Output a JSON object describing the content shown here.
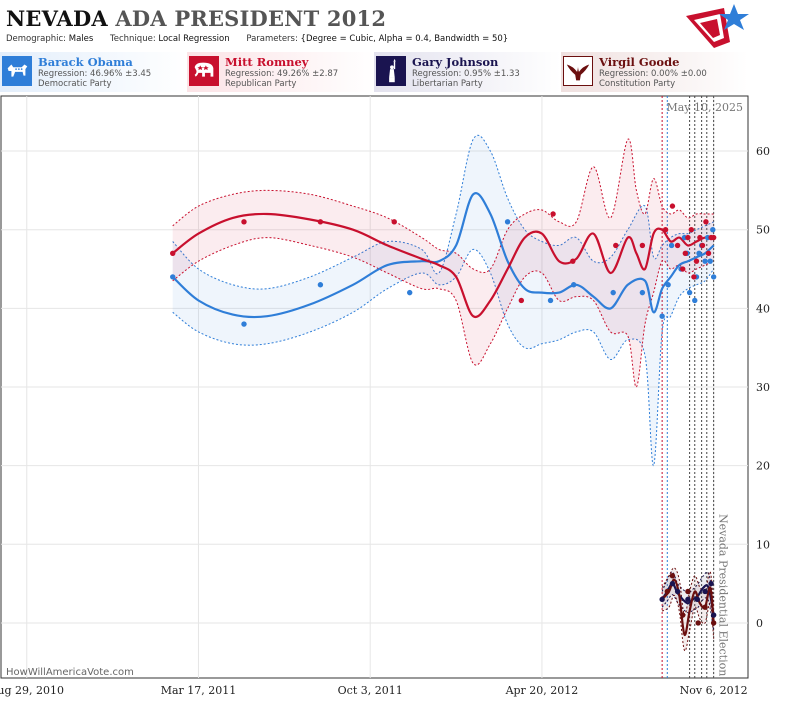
{
  "header": {
    "title_state": "NEVADA",
    "title_ada": "ADA",
    "title_rest": "PRESIDENT 2012",
    "params": {
      "demographic_label": "Demographic:",
      "demographic_value": "Males",
      "technique_label": "Technique:",
      "technique_value": "Local Regression",
      "parameters_label": "Parameters:",
      "parameters_value": "{Degree = Cubic, Alpha = 0.4, Bandwidth = 50}"
    }
  },
  "candidates": [
    {
      "name": "Barack Obama",
      "regression": "Regression: 46.96% ±3.45",
      "party": "Democratic Party",
      "color": "#2f7ed8",
      "icon": "donkey-icon"
    },
    {
      "name": "Mitt Romney",
      "regression": "Regression: 49.26% ±2.87",
      "party": "Republican Party",
      "color": "#c8102e",
      "icon": "elephant-icon"
    },
    {
      "name": "Gary Johnson",
      "regression": "Regression: 0.95% ±1.33",
      "party": "Libertarian Party",
      "color": "#1a1450",
      "icon": "liberty-statue-icon"
    },
    {
      "name": "Virgil Goode",
      "regression": "Regression: 0.00% ±0.00",
      "party": "Constitution Party",
      "color": "#6b0f0f",
      "icon": "eagle-icon"
    }
  ],
  "chart_data": {
    "type": "line",
    "current_date_label": "May 10, 2025",
    "event_label": "Nevada Presidential Election",
    "credit": "HowWillAmericaVote.com",
    "ylim": [
      -7,
      67
    ],
    "y_ticks": [
      0,
      10,
      20,
      30,
      40,
      50,
      60
    ],
    "x_ticks": [
      "Aug 29, 2010",
      "Mar 17, 2011",
      "Oct 3, 2011",
      "Apr 20, 2012",
      "Nov 6, 2012"
    ],
    "x_tick_days": [
      0,
      200,
      400,
      600,
      800
    ],
    "xlim_days": [
      -30,
      840
    ],
    "poll_date_lines_days": [
      740,
      746,
      772,
      778,
      786,
      792,
      800
    ],
    "series": [
      {
        "name": "Barack Obama",
        "color": "#2f7ed8",
        "fit_x": [
          170,
          200,
          240,
          280,
          330,
          380,
          420,
          460,
          480,
          500,
          520,
          540,
          560,
          580,
          600,
          620,
          640,
          660,
          680,
          700,
          720,
          730,
          740,
          750,
          760,
          770,
          780,
          790,
          800
        ],
        "fit_y": [
          44,
          41,
          39.2,
          39,
          40.5,
          43,
          45.5,
          46,
          46,
          48,
          54.5,
          52,
          46,
          42.5,
          42,
          42,
          43,
          41.5,
          40,
          43,
          43.5,
          39.5,
          42.5,
          44,
          45.5,
          46,
          46.5,
          47,
          48
        ],
        "upper": [
          48.5,
          45,
          43,
          42.5,
          44,
          46.5,
          48.5,
          47.5,
          44.5,
          52,
          61.5,
          60,
          54,
          50,
          48.5,
          48,
          49,
          46,
          46.5,
          50,
          53,
          46.5,
          48,
          49,
          49.5,
          49.5,
          50,
          50.5,
          51
        ],
        "lower": [
          39.5,
          37,
          35.5,
          35.5,
          37,
          39.5,
          42.5,
          44.5,
          43,
          44,
          47.5,
          44.5,
          38,
          35,
          35.5,
          36,
          37,
          37,
          33.5,
          36,
          34,
          20,
          37,
          39,
          41.5,
          42.5,
          43,
          43.5,
          45
        ],
        "points_x": [
          170,
          253,
          342,
          446,
          560,
          610,
          637,
          683,
          717,
          740,
          747,
          751,
          762,
          766,
          769,
          772,
          778,
          780,
          783,
          786,
          790,
          793,
          796,
          799,
          800
        ],
        "points_y": [
          44,
          38,
          43,
          42,
          51,
          41,
          43,
          42,
          42,
          39,
          43,
          48,
          45,
          49,
          47,
          42,
          41,
          44,
          47,
          48,
          46,
          49,
          46,
          50,
          44
        ]
      },
      {
        "name": "Mitt Romney",
        "color": "#c8102e",
        "fit_x": [
          170,
          200,
          240,
          280,
          330,
          380,
          420,
          460,
          480,
          500,
          520,
          540,
          560,
          580,
          600,
          620,
          640,
          660,
          680,
          700,
          710,
          720,
          730,
          740,
          750,
          760,
          770,
          780,
          790,
          800
        ],
        "fit_y": [
          47,
          49.5,
          51.5,
          52,
          51.3,
          50,
          48,
          46.3,
          45.5,
          44,
          39,
          41,
          45,
          49,
          49.5,
          46,
          46.3,
          49.5,
          44.5,
          49,
          47,
          45,
          49.5,
          50,
          48.5,
          49,
          48,
          48.5,
          49,
          49
        ],
        "upper": [
          50.5,
          53,
          54.5,
          55,
          54.5,
          53,
          51.5,
          49,
          47.5,
          47,
          45,
          45,
          50,
          52,
          52.5,
          51,
          51,
          58,
          51.5,
          61.5,
          55,
          52,
          56.5,
          53,
          52,
          52.5,
          51.5,
          52,
          52,
          52
        ],
        "lower": [
          43.5,
          46,
          48,
          49,
          48,
          46.5,
          44.5,
          42.5,
          42.5,
          41,
          33,
          35.5,
          40,
          44,
          44.5,
          41,
          41.5,
          41,
          37,
          36.5,
          30,
          38,
          42,
          46,
          45,
          45.5,
          44.5,
          45,
          45.5,
          46
        ]
      },
      {
        "name": "Mitt Romney points",
        "color": "#c8102e",
        "points_x": [
          170,
          253,
          342,
          428,
          576,
          613,
          636,
          686,
          717,
          744,
          752,
          758,
          764,
          767,
          770,
          774,
          777,
          780,
          784,
          787,
          791,
          794,
          797,
          800
        ],
        "points_y": [
          47,
          51,
          51,
          51,
          41,
          52,
          46,
          48,
          48,
          50,
          53,
          48,
          45,
          47,
          49,
          50,
          44,
          46,
          49,
          48,
          51,
          47,
          49,
          49
        ]
      },
      {
        "name": "Gary Johnson",
        "color": "#1a1450",
        "fit_x": [
          740,
          746,
          752,
          758,
          764,
          770,
          776,
          782,
          788,
          794,
          800
        ],
        "fit_y": [
          3,
          4,
          5,
          3.8,
          3,
          2.5,
          3,
          3.5,
          4.5,
          4.5,
          1
        ],
        "upper": [
          4,
          5.5,
          6.5,
          5,
          4.3,
          3.8,
          4.3,
          5,
          6,
          6.3,
          3
        ],
        "lower": [
          2,
          2.8,
          3.6,
          2.6,
          1.8,
          1.3,
          1.6,
          2,
          3,
          2.8,
          -1
        ],
        "points_x": [
          740,
          752,
          758,
          770,
          781,
          790,
          797,
          800
        ],
        "points_y": [
          3,
          5,
          4,
          3,
          3,
          4,
          5,
          1
        ]
      },
      {
        "name": "Virgil Goode",
        "color": "#6b0f0f",
        "fit_x": [
          740,
          748,
          754,
          760,
          766,
          772,
          778,
          784,
          790,
          796,
          800
        ],
        "fit_y": [
          3,
          4,
          5.5,
          3.5,
          -1.5,
          1.5,
          4,
          2.5,
          2,
          4.5,
          0
        ],
        "upper": [
          4.5,
          6,
          7,
          5.5,
          1,
          4,
          6,
          4.5,
          4,
          6.5,
          2
        ],
        "lower": [
          1.5,
          2,
          3.5,
          1.5,
          -3.5,
          -1,
          2,
          0.5,
          0,
          2.5,
          -2
        ],
        "points_x": [
          746,
          752,
          764,
          770,
          782,
          790,
          800
        ],
        "points_y": [
          4,
          6,
          1,
          4,
          0,
          2,
          0
        ]
      }
    ]
  }
}
